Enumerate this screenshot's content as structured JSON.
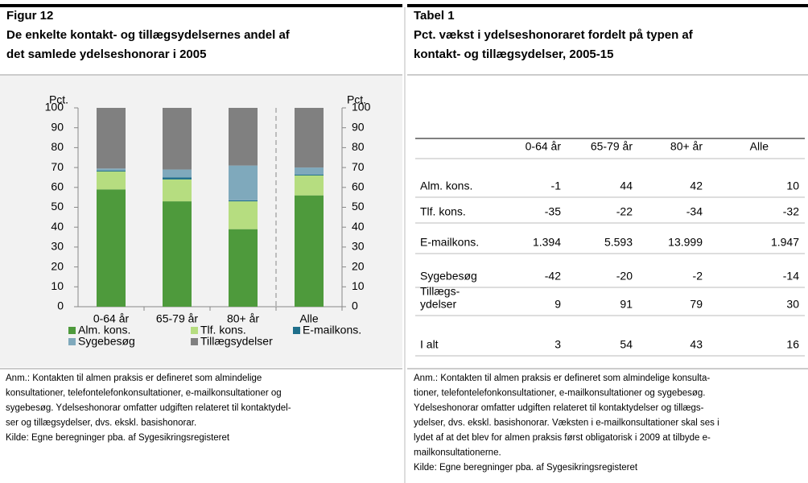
{
  "figure": {
    "label": "Figur 12",
    "title": [
      "De enkelte kontakt- og tillægsydelsernes andel af",
      "det samlede ydelseshonorar i 2005"
    ],
    "chart_data": {
      "type": "stacked_bar",
      "ylabel": "Pct.",
      "y2label": "Pct.",
      "categories": [
        "0-64 år",
        "65-79 år",
        "80+ år",
        "Alle"
      ],
      "series": [
        {
          "name": "Alm. kons.",
          "color": "#4e9a3c",
          "values": [
            59,
            53,
            39,
            56
          ]
        },
        {
          "name": "Tlf. kons.",
          "color": "#b6dd80",
          "values": [
            9,
            11,
            14,
            10
          ]
        },
        {
          "name": "E-mailkons.",
          "color": "#1f6f8b",
          "values": [
            0.5,
            1,
            0.5,
            0.5
          ]
        },
        {
          "name": "Sygebesøg",
          "color": "#7fa9bc",
          "values": [
            1,
            4,
            17.5,
            3.5
          ]
        },
        {
          "name": "Tillægsydelser",
          "color": "#808080",
          "values": [
            30.5,
            31,
            29,
            30
          ]
        }
      ],
      "ylim": [
        0,
        100
      ],
      "yticks": [
        0,
        10,
        20,
        30,
        40,
        50,
        60,
        70,
        80,
        90,
        100
      ],
      "grid": false
    },
    "notes": [
      "Anm.: Kontakten til almen praksis er defineret som almindelige",
      "konsultationer, telefontelefonkonsultationer, e-mailkonsultationer og",
      "sygebesøg. Ydelseshonorar omfatter udgiften relateret til kontaktydel-",
      "ser og tillægsydelser, dvs. ekskl. basishonorar.",
      "Kilde: Egne beregninger pba. af Sygesikringsregisteret"
    ]
  },
  "table": {
    "label": "Tabel 1",
    "title": [
      "Pct. vækst i ydelseshonoraret fordelt på typen af",
      "kontakt- og tillægsydelser, 2005-15"
    ],
    "columns": [
      "0-64 år",
      "65-79 år",
      "80+ år",
      "Alle"
    ],
    "rows": [
      {
        "label": [
          "Alm. kons."
        ],
        "values": [
          "-1",
          "44",
          "42",
          "10"
        ]
      },
      {
        "label": [
          "Tlf. kons."
        ],
        "values": [
          "-35",
          "-22",
          "-34",
          "-32"
        ]
      },
      {
        "label": [
          "E-mailkons."
        ],
        "values": [
          "1.394",
          "5.593",
          "13.999",
          "1.947"
        ]
      },
      {
        "label": [
          "Sygebesøg"
        ],
        "values": [
          "-42",
          "-20",
          "-2",
          "-14"
        ]
      },
      {
        "label": [
          "Tillægs-",
          "ydelser"
        ],
        "values": [
          "9",
          "91",
          "79",
          "30"
        ]
      },
      {
        "label": [
          "I alt"
        ],
        "values": [
          "3",
          "54",
          "43",
          "16"
        ]
      }
    ],
    "notes": [
      "Anm.: Kontakten til almen praksis er defineret som almindelige konsulta-",
      "tioner, telefontelefonkonsultationer, e-mailkonsultationer og sygebesøg.",
      "Ydelseshonorar omfatter udgiften relateret til kontaktydelser og tillægs-",
      "ydelser, dvs. ekskl. basishonorar. Væksten i e-mailkonsultationer skal ses i",
      "lydet af at det blev for almen praksis først obligatorisk i 2009 at tilbyde e-",
      "mailkonsultationerne.",
      "Kilde: Egne beregninger pba. af Sygesikringsregisteret"
    ]
  }
}
